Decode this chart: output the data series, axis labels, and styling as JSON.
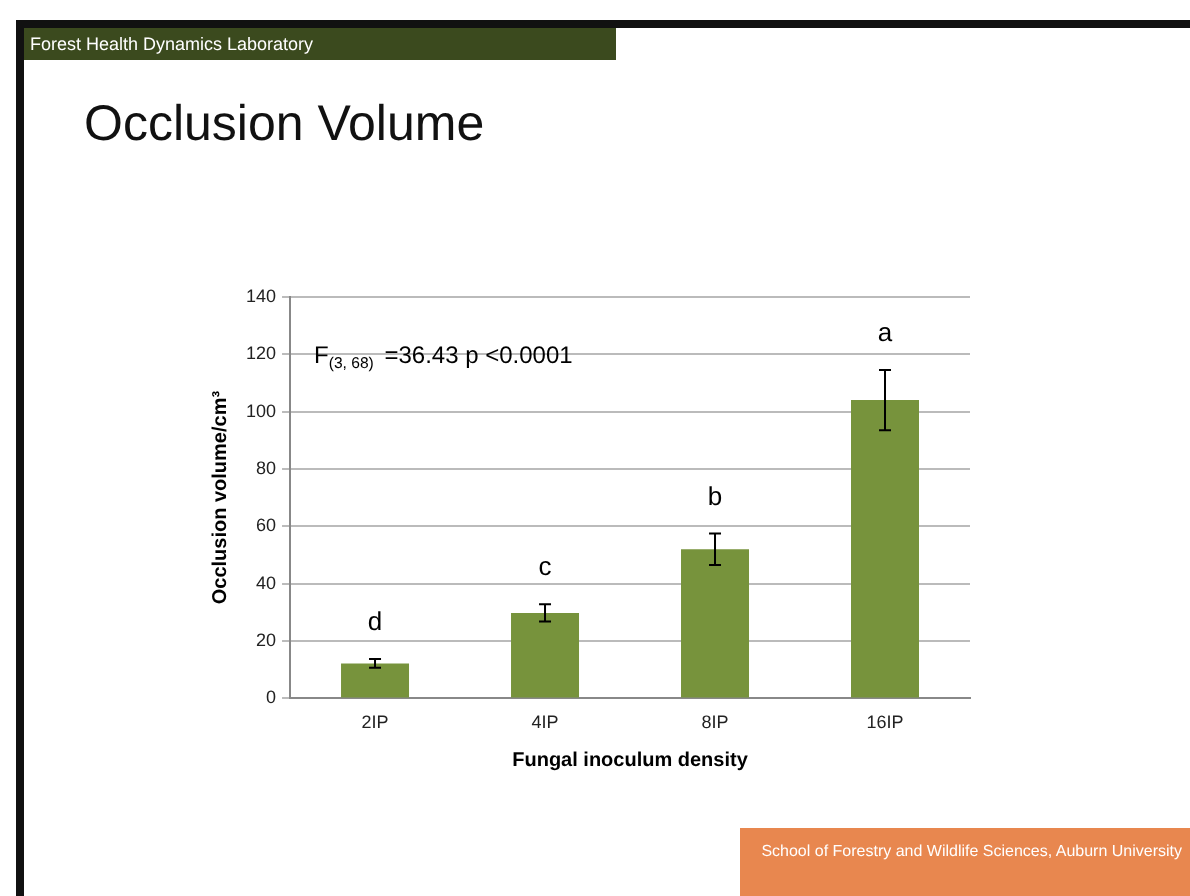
{
  "chart_data": {
    "type": "bar",
    "title": "Occlusion Volume",
    "xlabel": "Fungal inoculum density",
    "ylabel": "Occlusion volume/cm³",
    "categories": [
      "2IP",
      "4IP",
      "8IP",
      "16IP"
    ],
    "values": [
      12.2,
      29.8,
      52,
      104
    ],
    "errors": [
      1.5,
      3,
      5.5,
      10.5
    ],
    "color": "#77933c",
    "ylim": [
      0,
      140
    ],
    "yticks": [
      0,
      20,
      40,
      60,
      80,
      100,
      120,
      140
    ],
    "grid": "y",
    "annotations": [
      "Forest Health Dynamics Laboratory",
      "F$_{(3, 68)}$ =36.43 p <0.0001",
      "d",
      "c",
      "b",
      "a",
      "School of Forestry and Wildlife Sciences, Auburn University"
    ]
  }
}
